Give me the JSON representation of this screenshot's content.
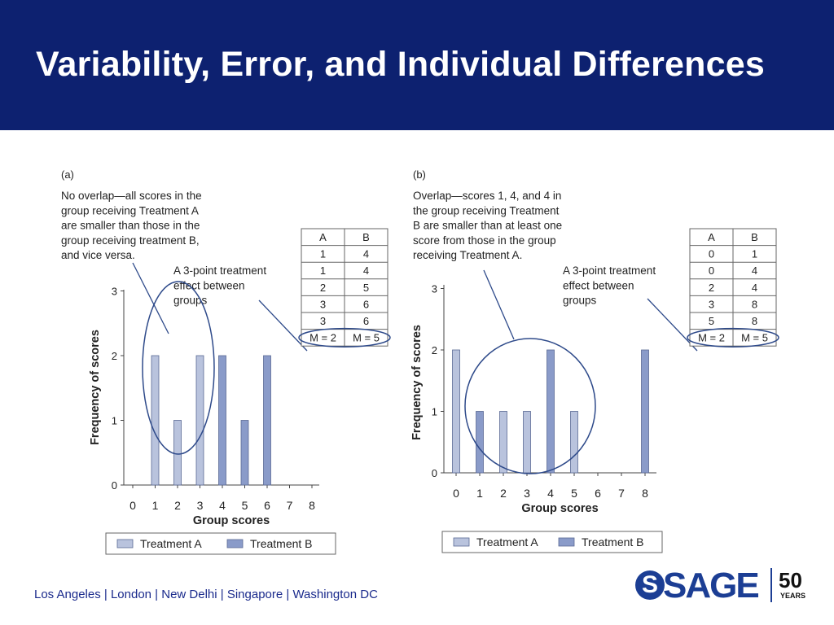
{
  "header": {
    "title": "Variability, Error, and Individual Differences"
  },
  "footer": {
    "locations": "Los Angeles | London | New Delhi | Singapore | Washington DC",
    "logo_text": "SAGE",
    "logo_s": "S",
    "anniversary": "50",
    "anniversary_label": "YEARS"
  },
  "colors": {
    "header_bg": "#0d2170",
    "treatment_a": "#b9c3dd",
    "treatment_b": "#8a9bc9",
    "annotation": "#2e4a8a"
  },
  "chart_data": [
    {
      "type": "bar",
      "panel_label": "(a)",
      "annotation_main": [
        "No overlap—all scores in the",
        "group receiving Treatment A",
        "are smaller than those in the",
        "group receiving treatment B,",
        "and vice versa."
      ],
      "annotation_effect": [
        "A 3-point treatment",
        "effect between",
        "groups"
      ],
      "xlabel": "Group scores",
      "ylabel": "Frequency of scores",
      "x_ticks": [
        "0",
        "1",
        "2",
        "3",
        "4",
        "5",
        "6",
        "7",
        "8"
      ],
      "y_ticks": [
        "0",
        "1",
        "2",
        "3"
      ],
      "ylim": [
        0,
        3
      ],
      "series": [
        {
          "name": "Treatment A",
          "points": [
            {
              "x": 1,
              "y": 2
            },
            {
              "x": 2,
              "y": 1
            },
            {
              "x": 3,
              "y": 2
            }
          ]
        },
        {
          "name": "Treatment B",
          "points": [
            {
              "x": 4,
              "y": 2
            },
            {
              "x": 5,
              "y": 1
            },
            {
              "x": 6,
              "y": 2
            }
          ]
        }
      ],
      "table": {
        "headers": [
          "A",
          "B"
        ],
        "rows": [
          [
            "1",
            "4"
          ],
          [
            "1",
            "4"
          ],
          [
            "2",
            "5"
          ],
          [
            "3",
            "6"
          ],
          [
            "3",
            "6"
          ]
        ],
        "means": [
          "M = 2",
          "M = 5"
        ]
      }
    },
    {
      "type": "bar",
      "panel_label": "(b)",
      "annotation_main": [
        "Overlap—scores 1, 4, and 4 in",
        "the group receiving Treatment",
        "B are smaller than at least one",
        "score from those in the group",
        "receiving Treatment A."
      ],
      "annotation_effect": [
        "A 3-point treatment",
        "effect between",
        "groups"
      ],
      "xlabel": "Group scores",
      "ylabel": "Frequency of scores",
      "x_ticks": [
        "0",
        "1",
        "2",
        "3",
        "4",
        "5",
        "6",
        "7",
        "8"
      ],
      "y_ticks": [
        "0",
        "1",
        "2",
        "3"
      ],
      "ylim": [
        0,
        3
      ],
      "series": [
        {
          "name": "Treatment A",
          "points": [
            {
              "x": 0,
              "y": 2
            },
            {
              "x": 2,
              "y": 1
            },
            {
              "x": 3,
              "y": 1
            },
            {
              "x": 5,
              "y": 1
            }
          ]
        },
        {
          "name": "Treatment B",
          "points": [
            {
              "x": 1,
              "y": 1
            },
            {
              "x": 4,
              "y": 2
            },
            {
              "x": 8,
              "y": 2
            }
          ]
        }
      ],
      "table": {
        "headers": [
          "A",
          "B"
        ],
        "rows": [
          [
            "0",
            "1"
          ],
          [
            "0",
            "4"
          ],
          [
            "2",
            "4"
          ],
          [
            "3",
            "8"
          ],
          [
            "5",
            "8"
          ]
        ],
        "means": [
          "M = 2",
          "M = 5"
        ]
      }
    }
  ]
}
